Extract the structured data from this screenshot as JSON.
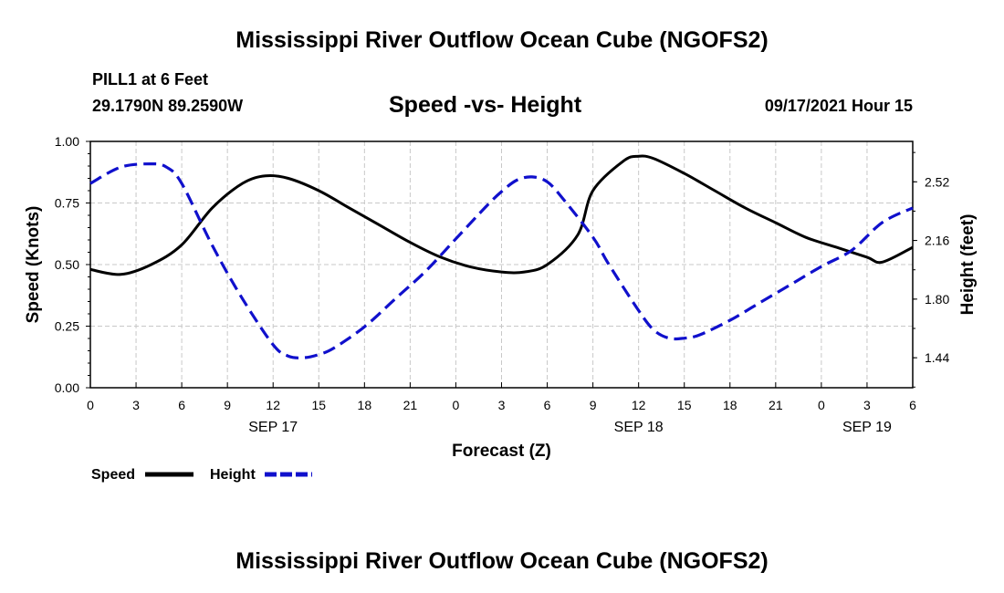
{
  "header": {
    "title": "Mississippi River Outflow Ocean Cube (NGOFS2)",
    "station": "PILL1 at 6 Feet",
    "coords": "29.1790N  89.2590W",
    "timestamp": "09/17/2021 Hour 15"
  },
  "footer": {
    "title": "Mississippi River Outflow Ocean Cube (NGOFS2)"
  },
  "chart_data": {
    "type": "line",
    "title": "Speed -vs- Height",
    "xlabel": "Forecast (Z)",
    "ylabel_left": "Speed (Knots)",
    "ylabel_right": "Height (feet)",
    "xlim": [
      0,
      54
    ],
    "ylim_left": [
      0,
      1.0
    ],
    "ylim_right": [
      1.256,
      2.768
    ],
    "grid": true,
    "x_tick_labels": [
      "0",
      "3",
      "6",
      "9",
      "12",
      "15",
      "18",
      "21",
      "0",
      "3",
      "6",
      "9",
      "12",
      "15",
      "18",
      "21",
      "0",
      "3",
      "6"
    ],
    "y_left_ticks": [
      0,
      0.25,
      0.5,
      0.75,
      1.0
    ],
    "y_left_tick_labels": [
      "0.00",
      "0.25",
      "0.50",
      "0.75",
      "1.00"
    ],
    "y_right_ticks": [
      1.44,
      1.8,
      2.16,
      2.52
    ],
    "y_right_tick_labels": [
      "1.44",
      "1.80",
      "2.16",
      "2.52"
    ],
    "date_labels": [
      {
        "label": "SEP 17",
        "hour": 12
      },
      {
        "label": "SEP 18",
        "hour": 36
      },
      {
        "label": "SEP 19",
        "hour": 51
      }
    ],
    "series": [
      {
        "name": "Speed",
        "axis": "left",
        "color": "#000000",
        "style": "solid",
        "x": [
          0,
          2,
          4,
          6,
          8,
          10,
          11.5,
          13,
          15,
          17,
          19,
          21,
          23,
          25,
          27,
          28.5,
          30,
          32,
          33,
          35,
          36,
          37,
          39,
          41,
          43,
          45,
          47,
          49,
          51,
          52,
          54
        ],
        "y": [
          0.48,
          0.46,
          0.5,
          0.58,
          0.73,
          0.83,
          0.86,
          0.85,
          0.8,
          0.73,
          0.66,
          0.59,
          0.53,
          0.49,
          0.47,
          0.47,
          0.5,
          0.62,
          0.8,
          0.92,
          0.94,
          0.93,
          0.87,
          0.8,
          0.73,
          0.67,
          0.61,
          0.57,
          0.53,
          0.51,
          0.57
        ]
      },
      {
        "name": "Height",
        "axis": "right",
        "color": "#1010cc",
        "style": "dashed",
        "x": [
          0,
          2,
          4,
          5,
          6,
          8,
          10,
          12,
          13,
          14,
          15,
          16,
          18,
          20,
          22,
          24,
          26,
          27,
          28,
          29,
          30,
          31,
          33,
          34,
          36,
          37,
          38,
          39,
          40,
          42,
          44,
          46,
          48,
          50,
          52,
          54
        ],
        "y": [
          2.51,
          2.61,
          2.63,
          2.61,
          2.51,
          2.13,
          1.8,
          1.52,
          1.45,
          1.44,
          1.46,
          1.5,
          1.63,
          1.8,
          1.97,
          2.17,
          2.37,
          2.46,
          2.53,
          2.55,
          2.52,
          2.42,
          2.18,
          2.02,
          1.73,
          1.61,
          1.56,
          1.56,
          1.58,
          1.67,
          1.78,
          1.89,
          2.0,
          2.1,
          2.27,
          2.36
        ]
      }
    ]
  }
}
